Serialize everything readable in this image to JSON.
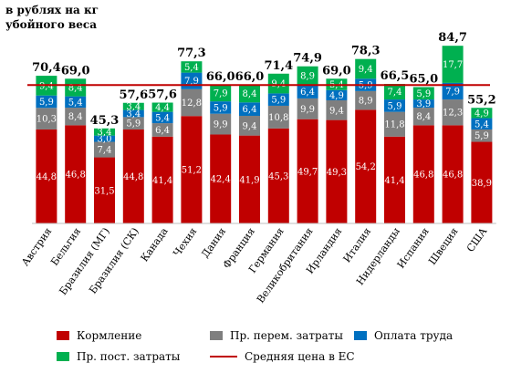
{
  "chart_data": {
    "type": "bar",
    "stacked": true,
    "title": "",
    "ylabel": "в рублях на кг убойного веса",
    "xlabel": "",
    "ylim": [
      0,
      90
    ],
    "grid": false,
    "legend_position": "bottom",
    "categories": [
      "Австрия",
      "Бельгия",
      "Бразилия (МГ)",
      "Бразилия (СК)",
      "Канада",
      "Чехия",
      "Дания",
      "Франция",
      "Германия",
      "Великобритания",
      "Ирландия",
      "Италия",
      "Нидерланды",
      "Испания",
      "Швеция",
      "США"
    ],
    "series": [
      {
        "name": "Кормление",
        "color": "#c00000",
        "values": [
          44.8,
          46.8,
          31.5,
          44.8,
          41.4,
          51.2,
          42.4,
          41.9,
          45.3,
          49.7,
          49.3,
          54.2,
          41.4,
          46.8,
          46.8,
          38.9
        ]
      },
      {
        "name": "Пр. перем. затраты",
        "color": "#7f7f7f",
        "values": [
          10.3,
          8.4,
          7.4,
          5.9,
          6.4,
          12.8,
          9.9,
          9.4,
          10.8,
          9.9,
          9.4,
          8.9,
          11.8,
          8.4,
          12.3,
          5.9
        ]
      },
      {
        "name": "Оплата труда",
        "color": "#0070c0",
        "values": [
          5.9,
          5.4,
          3.0,
          3.4,
          5.4,
          7.9,
          5.9,
          6.4,
          5.9,
          6.4,
          4.9,
          5.9,
          5.9,
          3.9,
          7.9,
          5.4
        ]
      },
      {
        "name": "Пр. пост. затраты",
        "color": "#00b050",
        "values": [
          9.4,
          8.4,
          3.4,
          3.4,
          4.4,
          5.4,
          7.9,
          8.4,
          9.4,
          8.9,
          5.4,
          9.4,
          7.4,
          5.9,
          17.7,
          4.9
        ]
      }
    ],
    "totals": [
      "70,4",
      "69,0",
      "45,3",
      "57,6",
      "57,6",
      "77,3",
      "66,0",
      "66,0",
      "71,4",
      "74,9",
      "69,0",
      "78,3",
      "66,5",
      "65,0",
      "84,7",
      "55,2"
    ],
    "eu_average": {
      "name": "Средняя цена в ЕС",
      "value": 66.0,
      "color": "#c00000"
    }
  }
}
